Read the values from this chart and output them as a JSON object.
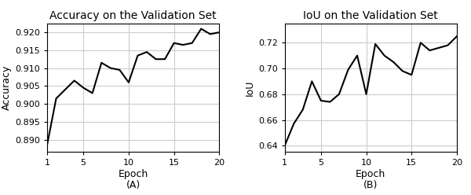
{
  "accuracy_epochs": [
    1,
    2,
    3,
    4,
    5,
    6,
    7,
    8,
    9,
    10,
    11,
    12,
    13,
    14,
    15,
    16,
    17,
    18,
    19,
    20
  ],
  "accuracy_values": [
    0.8885,
    0.9015,
    0.904,
    0.9065,
    0.9045,
    0.903,
    0.9115,
    0.91,
    0.9095,
    0.906,
    0.9135,
    0.9145,
    0.9125,
    0.9125,
    0.917,
    0.9165,
    0.917,
    0.921,
    0.9195,
    0.92
  ],
  "iou_epochs": [
    1,
    2,
    3,
    4,
    5,
    6,
    7,
    8,
    9,
    10,
    11,
    12,
    13,
    14,
    15,
    16,
    17,
    18,
    19,
    20
  ],
  "iou_values": [
    0.64,
    0.657,
    0.668,
    0.69,
    0.675,
    0.674,
    0.68,
    0.699,
    0.71,
    0.68,
    0.719,
    0.71,
    0.705,
    0.698,
    0.695,
    0.72,
    0.714,
    0.716,
    0.718,
    0.725
  ],
  "title_acc": "Accuracy on the Validation Set",
  "title_iou": "IoU on the Validation Set",
  "xlabel": "Epoch",
  "ylabel_acc": "Accuracy",
  "ylabel_iou": "IoU",
  "label_a": "(A)",
  "label_b": "(B)",
  "xlim": [
    1,
    20
  ],
  "ylim_acc": [
    0.8865,
    0.9225
  ],
  "ylim_iou": [
    0.635,
    0.735
  ],
  "line_color": "#000000",
  "line_width": 1.5,
  "grid": true,
  "grid_color": "#cccccc",
  "background_color": "#ffffff",
  "yticks_acc": [
    0.89,
    0.895,
    0.9,
    0.905,
    0.91,
    0.915,
    0.92
  ],
  "yticks_iou": [
    0.64,
    0.66,
    0.68,
    0.7,
    0.72
  ],
  "xticks": [
    1,
    5,
    10,
    15,
    20
  ]
}
